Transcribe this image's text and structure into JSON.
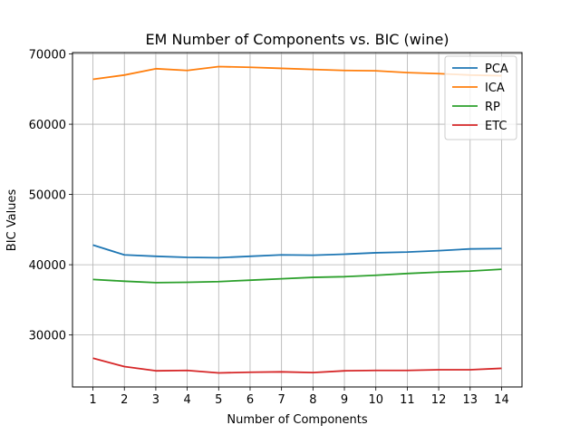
{
  "chart_data": {
    "type": "line",
    "title": "EM Number of Components vs. BIC (wine)",
    "xlabel": "Number of Components",
    "ylabel": "BIC Values",
    "x": [
      1,
      2,
      3,
      4,
      5,
      6,
      7,
      8,
      9,
      10,
      11,
      12,
      13,
      14
    ],
    "xlim": [
      0.35,
      14.65
    ],
    "ylim": [
      22600,
      70200
    ],
    "yticks": [
      30000,
      40000,
      50000,
      60000,
      70000
    ],
    "grid": true,
    "legend_position": "top-right",
    "series": [
      {
        "name": "PCA",
        "color": "#1f77b4",
        "values": [
          42800,
          41400,
          41200,
          41050,
          41000,
          41200,
          41400,
          41350,
          41500,
          41700,
          41800,
          42000,
          42250,
          42300
        ]
      },
      {
        "name": "ICA",
        "color": "#ff7f0e",
        "values": [
          66400,
          67000,
          67900,
          67650,
          68200,
          68100,
          67950,
          67800,
          67650,
          67600,
          67350,
          67200,
          67000,
          66900
        ]
      },
      {
        "name": "RP",
        "color": "#2ca02c",
        "values": [
          37900,
          37650,
          37450,
          37500,
          37600,
          37800,
          38000,
          38200,
          38300,
          38500,
          38750,
          38950,
          39100,
          39350
        ]
      },
      {
        "name": "ETC",
        "color": "#d62728",
        "values": [
          26700,
          25500,
          24900,
          24950,
          24600,
          24700,
          24750,
          24650,
          24900,
          24950,
          24950,
          25050,
          25050,
          25250
        ]
      }
    ]
  }
}
